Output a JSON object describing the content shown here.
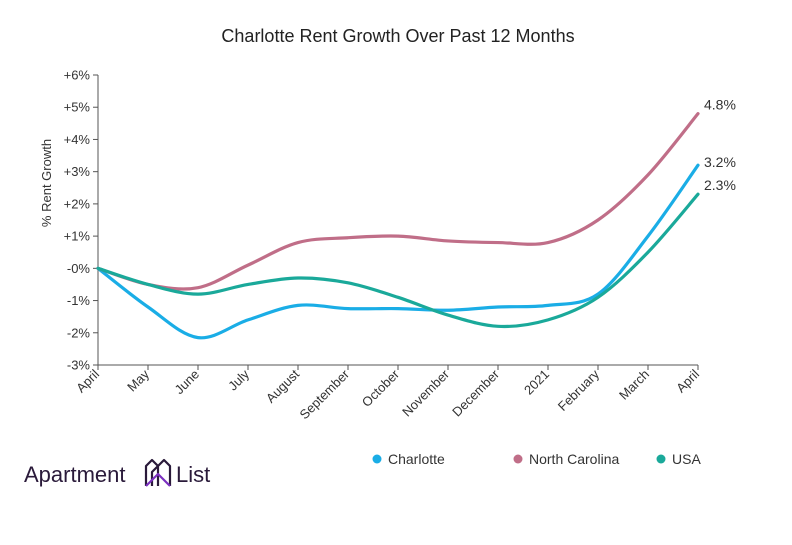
{
  "chart_data": {
    "type": "line",
    "title": "Charlotte Rent Growth Over Past 12 Months",
    "xlabel": "",
    "ylabel": "% Rent Growth",
    "categories": [
      "April",
      "May",
      "June",
      "July",
      "August",
      "September",
      "October",
      "November",
      "December",
      "2021",
      "February",
      "March",
      "April"
    ],
    "ylim": [
      -3,
      6
    ],
    "yticks": [
      -3,
      -2,
      -1,
      0,
      1,
      2,
      3,
      4,
      5,
      6
    ],
    "ytick_labels": [
      "-3%",
      "-2%",
      "-1%",
      "-0%",
      "+1%",
      "+2%",
      "+3%",
      "+4%",
      "+5%",
      "+6%"
    ],
    "grid": false,
    "legend_position": "bottom-right",
    "series": [
      {
        "name": "Charlotte",
        "color": "#1aade6",
        "values": [
          0,
          -1.2,
          -2.15,
          -1.6,
          -1.15,
          -1.25,
          -1.25,
          -1.3,
          -1.2,
          -1.15,
          -0.8,
          1.0,
          3.2
        ],
        "end_label": "3.2%"
      },
      {
        "name": "North Carolina",
        "color": "#c06e88",
        "values": [
          0,
          -0.5,
          -0.6,
          0.1,
          0.8,
          0.95,
          1.0,
          0.85,
          0.8,
          0.8,
          1.5,
          2.9,
          4.8
        ],
        "end_label": "4.8%"
      },
      {
        "name": "USA",
        "color": "#1aa99a",
        "values": [
          0,
          -0.5,
          -0.8,
          -0.5,
          -0.3,
          -0.45,
          -0.9,
          -1.45,
          -1.8,
          -1.6,
          -0.9,
          0.5,
          2.3
        ],
        "end_label": "2.3%"
      }
    ]
  },
  "brand": {
    "logo_text_left": "Apartment",
    "logo_text_right": "List",
    "logo_color": "#2a1a3a",
    "logo_accent_color": "#7b2fbf",
    "logo_icon": "building-logo-icon"
  }
}
